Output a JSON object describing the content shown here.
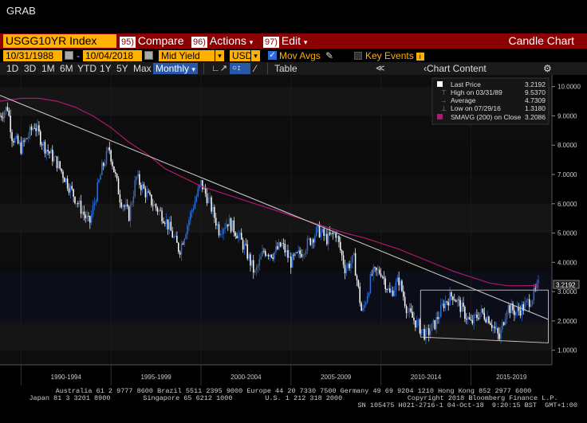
{
  "window": {
    "title": "GRAB"
  },
  "toolbar": {
    "ticker": "USGG10YR Index",
    "compare": {
      "num": "95)",
      "label": "Compare"
    },
    "actions": {
      "num": "96)",
      "label": "Actions"
    },
    "edit": {
      "num": "97)",
      "label": "Edit"
    },
    "chart_type": "Candle Chart"
  },
  "controls": {
    "start_date": "10/31/1988",
    "end_date": "10/04/2018",
    "field": "Mid Yield",
    "currency": "USD",
    "mov_avgs": "Mov Avgs",
    "key_events": "Key Events"
  },
  "ranges": {
    "items": [
      "1D",
      "3D",
      "1M",
      "6M",
      "YTD",
      "1Y",
      "5Y",
      "Max"
    ],
    "period": "Monthly",
    "table": "Table",
    "chart_content": "Chart Content"
  },
  "legend": {
    "last_price": {
      "label": "Last Price",
      "value": "3.2192"
    },
    "high": {
      "label": "High on 03/31/89",
      "value": "9.5370"
    },
    "average": {
      "label": "Average",
      "value": "4.7309"
    },
    "low": {
      "label": "Low on 07/29/16",
      "value": "1.3180"
    },
    "smavg": {
      "label": "SMAVG (200)  on Close",
      "value": "3.2086"
    }
  },
  "colors": {
    "candle_up": "#ffffff",
    "candle_down": "#2f6fd6",
    "smavg": "#b0176e",
    "trendline": "#c8c8c8",
    "ticker_bg": "#ffb000",
    "header_bg": "#8b0000"
  },
  "chart_data": {
    "type": "line",
    "title": "",
    "x_tick_labels": [
      "1990-1994",
      "1995-1999",
      "2000-2004",
      "2005-2009",
      "2010-2014",
      "2015-2019"
    ],
    "y_tick_labels": [
      "1.0000",
      "2.0000",
      "3.0000",
      "4.0000",
      "5.0000",
      "6.0000",
      "7.0000",
      "8.0000",
      "9.0000",
      "10.0000"
    ],
    "ylim": [
      0.5,
      10.4
    ],
    "xlim": [
      1988.83,
      2019.5
    ],
    "last_value_label": "3.2192",
    "series": [
      {
        "name": "USGG10YR Index",
        "style": "candle",
        "x": [
          1988.83,
          1989.25,
          1989.5,
          1990.0,
          1990.75,
          1991.25,
          1992.0,
          1993.0,
          1993.8,
          1994.5,
          1994.9,
          1995.5,
          1996.0,
          1996.4,
          1997.2,
          1998.0,
          1998.8,
          1999.5,
          2000.0,
          2000.5,
          2001.0,
          2001.5,
          2002.0,
          2002.5,
          2003.0,
          2003.5,
          2004.0,
          2004.5,
          2005.0,
          2005.5,
          2006.5,
          2007.0,
          2007.5,
          2008.0,
          2008.5,
          2008.95,
          2009.5,
          2010.0,
          2010.5,
          2011.0,
          2011.5,
          2012.0,
          2012.5,
          2013.0,
          2013.5,
          2014.0,
          2014.5,
          2015.0,
          2015.5,
          2016.0,
          2016.58,
          2017.0,
          2017.5,
          2018.0,
          2018.5,
          2018.76
        ],
        "values": [
          9.0,
          9.3,
          8.3,
          7.9,
          8.7,
          8.0,
          7.4,
          6.2,
          5.3,
          7.2,
          7.9,
          6.2,
          5.6,
          6.9,
          6.1,
          5.5,
          4.4,
          5.8,
          6.7,
          6.0,
          5.1,
          5.4,
          5.0,
          4.4,
          3.6,
          4.4,
          4.3,
          4.6,
          4.0,
          4.3,
          5.1,
          4.8,
          5.0,
          3.8,
          4.1,
          2.2,
          3.6,
          3.7,
          2.9,
          3.4,
          2.3,
          1.9,
          1.5,
          1.9,
          2.6,
          2.9,
          2.4,
          1.9,
          2.3,
          2.1,
          1.4,
          2.5,
          2.3,
          2.5,
          2.9,
          3.22
        ]
      },
      {
        "name": "SMAVG (200)",
        "style": "line",
        "x": [
          1988.83,
          1990.0,
          1991.0,
          1992.0,
          1993.0,
          1994.0,
          1995.0,
          1996.0,
          1997.0,
          1998.0,
          1999.0,
          2000.0,
          2001.0,
          2002.0,
          2003.0,
          2004.0,
          2005.0,
          2006.0,
          2007.0,
          2008.0,
          2009.0,
          2010.0,
          2011.0,
          2012.0,
          2013.0,
          2014.0,
          2015.0,
          2016.0,
          2017.0,
          2018.0,
          2018.76
        ],
        "values": [
          9.5,
          9.6,
          9.6,
          9.5,
          9.3,
          9.0,
          8.6,
          8.1,
          7.7,
          7.2,
          6.9,
          6.6,
          6.4,
          6.2,
          6.0,
          5.8,
          5.6,
          5.4,
          5.2,
          5.0,
          4.85,
          4.65,
          4.45,
          4.2,
          3.95,
          3.7,
          3.5,
          3.3,
          3.2,
          3.2,
          3.2086
        ]
      },
      {
        "name": "Trendline",
        "style": "line",
        "x": [
          1988.83,
          2019.3
        ],
        "values": [
          9.7,
          2.05
        ]
      },
      {
        "name": "Channel",
        "style": "line",
        "x": [
          2012.2,
          2019.3,
          2019.3,
          2012.2,
          2012.2
        ],
        "values": [
          3.05,
          3.05,
          1.25,
          1.45,
          3.05
        ]
      }
    ]
  },
  "footer": {
    "line1": "Australia 61 2 9777 8600 Brazil 5511 2395 9000 Europe 44 20 7330 7500 Germany 49 69 9204 1210 Hong Kong 852 2977 6000",
    "line2": "Japan 81 3 3201 8900        Singapore 65 6212 1000        U.S. 1 212 318 2000                Copyright 2018 Bloomberg Finance L.P.",
    "line3": "SN 105475 H021-2716-1 04-Oct-18  9:20:15 BST  GMT+1:00"
  }
}
